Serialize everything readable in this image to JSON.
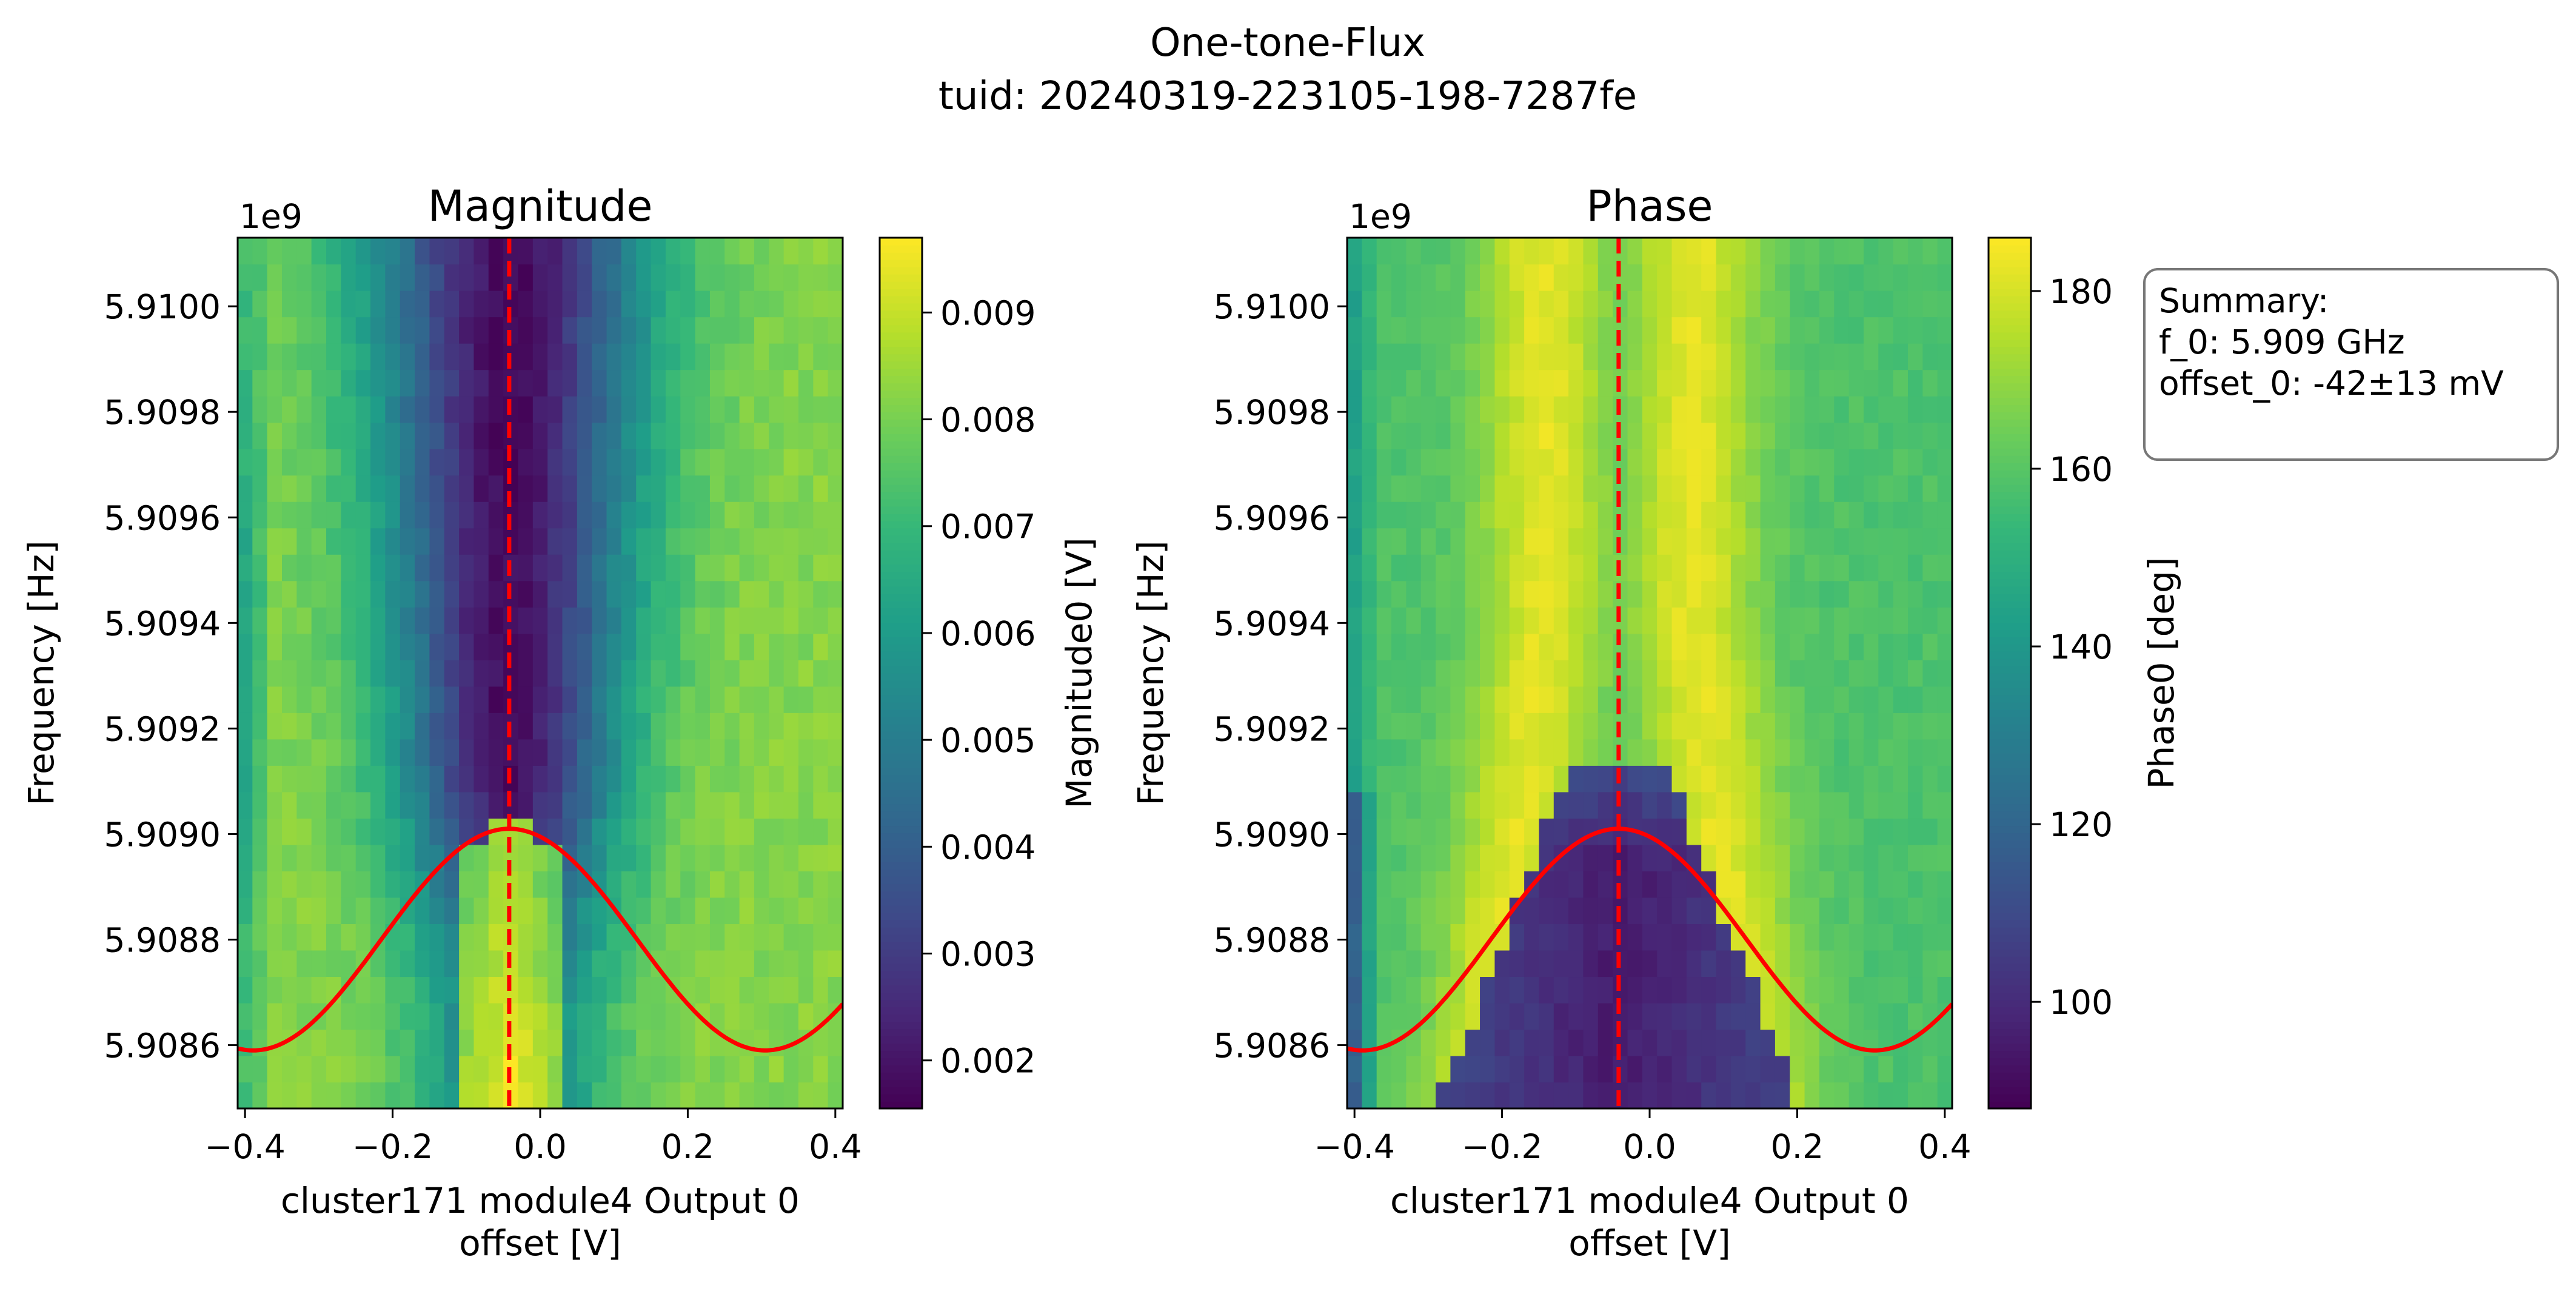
{
  "figure": {
    "title_line1": "One-tone-Flux",
    "title_line2": "tuid: 20240319-223105-198-7287fe"
  },
  "summary": {
    "heading": "Summary:",
    "line1": "f_0: 5.909 GHz",
    "line2": "offset_0: -42±13 mV"
  },
  "chart_data": [
    {
      "type": "heatmap",
      "title": "Magnitude",
      "xlabel_line1": "cluster171 module4 Output 0",
      "xlabel_line2": "offset [V]",
      "ylabel": "Frequency [Hz]",
      "y_multiplier": "1e9",
      "xlim": [
        -0.41,
        0.41
      ],
      "ylim": [
        5.90848,
        5.91013
      ],
      "xticks": [
        -0.4,
        -0.2,
        0.0,
        0.2,
        0.4
      ],
      "xtick_labels": [
        "−0.4",
        "−0.2",
        "0.0",
        "0.2",
        "0.4"
      ],
      "yticks": [
        5.9086,
        5.9088,
        5.909,
        5.9092,
        5.9094,
        5.9096,
        5.9098,
        5.91
      ],
      "ytick_labels": [
        "5.9086",
        "5.9088",
        "5.9090",
        "5.9092",
        "5.9094",
        "5.9096",
        "5.9098",
        "5.9100"
      ],
      "colorbar": {
        "label": "Magnitude0 [V]",
        "range": [
          0.00155,
          0.0097
        ],
        "ticks": [
          0.002,
          0.003,
          0.004,
          0.005,
          0.006,
          0.007,
          0.008,
          0.009
        ],
        "tick_labels": [
          "0.002",
          "0.003",
          "0.004",
          "0.005",
          "0.006",
          "0.007",
          "0.008",
          "0.009"
        ],
        "colormap": "viridis"
      },
      "model": {
        "kind": "magnitude",
        "base": 0.0082,
        "dip_depth": 0.0064,
        "edge_low": 0.0058,
        "peak_near_bottom": 0.0095
      },
      "fit_curve": {
        "x0": -0.042,
        "f_max": 5.90901,
        "amplitude": 0.00042,
        "period": 0.694,
        "color": "#ff0000"
      },
      "vline": {
        "x": -0.042,
        "color": "#ff0000",
        "style": "dashed"
      }
    },
    {
      "type": "heatmap",
      "title": "Phase",
      "xlabel_line1": "cluster171 module4 Output 0",
      "xlabel_line2": "offset [V]",
      "ylabel": "Frequency [Hz]",
      "y_multiplier": "1e9",
      "xlim": [
        -0.41,
        0.41
      ],
      "ylim": [
        5.90848,
        5.91013
      ],
      "xticks": [
        -0.4,
        -0.2,
        0.0,
        0.2,
        0.4
      ],
      "xtick_labels": [
        "−0.4",
        "−0.2",
        "0.0",
        "0.2",
        "0.4"
      ],
      "yticks": [
        5.9086,
        5.9088,
        5.909,
        5.9092,
        5.9094,
        5.9096,
        5.9098,
        5.91
      ],
      "ytick_labels": [
        "5.9086",
        "5.9088",
        "5.9090",
        "5.9092",
        "5.9094",
        "5.9096",
        "5.9098",
        "5.9100"
      ],
      "colorbar": {
        "label": "Phase0 [deg]",
        "range": [
          88,
          186
        ],
        "ticks": [
          100,
          120,
          140,
          160,
          180
        ],
        "tick_labels": [
          "100",
          "120",
          "140",
          "160",
          "180"
        ],
        "colormap": "viridis"
      },
      "model": {
        "kind": "phase",
        "base": 158,
        "high": 182,
        "low": 95,
        "edge_low": 105
      },
      "fit_curve": {
        "x0": -0.042,
        "f_max": 5.90901,
        "amplitude": 0.00042,
        "period": 0.694,
        "color": "#ff0000"
      },
      "vline": {
        "x": -0.042,
        "color": "#ff0000",
        "style": "dashed"
      }
    }
  ]
}
